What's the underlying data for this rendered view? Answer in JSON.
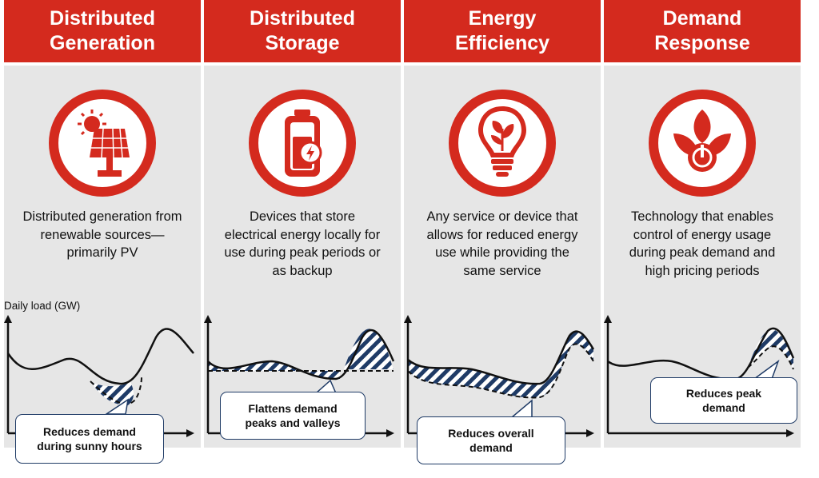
{
  "colors": {
    "red": "#d42a1e",
    "panel_bg": "#e6e6e6",
    "navy": "#1f3b66",
    "text": "#111111"
  },
  "y_axis_label": "Daily load (GW)",
  "panels": [
    {
      "title_line1": "Distributed",
      "title_line2": "Generation",
      "icon": "solar-panel-icon",
      "desc_lines": [
        "Distributed generation from",
        "renewable sources—",
        "primarily PV"
      ],
      "callout_lines": [
        "Reduces demand",
        "during sunny hours"
      ]
    },
    {
      "title_line1": "Distributed",
      "title_line2": "Storage",
      "icon": "battery-icon",
      "desc_lines": [
        "Devices that store",
        "electrical energy locally for",
        "use during peak periods or",
        "as backup"
      ],
      "callout_lines": [
        "Flattens demand",
        "peaks and valleys"
      ]
    },
    {
      "title_line1": "Energy",
      "title_line2": "Efficiency",
      "icon": "lightbulb-leaf-icon",
      "desc_lines": [
        "Any service or device that",
        "allows for reduced energy",
        "use while providing the",
        "same service"
      ],
      "callout_lines": [
        "Reduces overall",
        "demand"
      ]
    },
    {
      "title_line1": "Demand",
      "title_line2": "Response",
      "icon": "leaf-power-icon",
      "desc_lines": [
        "Technology that enables",
        "control of energy usage",
        "during peak demand and",
        "high pricing periods"
      ],
      "callout_lines": [
        "Reduces peak",
        "demand"
      ]
    }
  ]
}
